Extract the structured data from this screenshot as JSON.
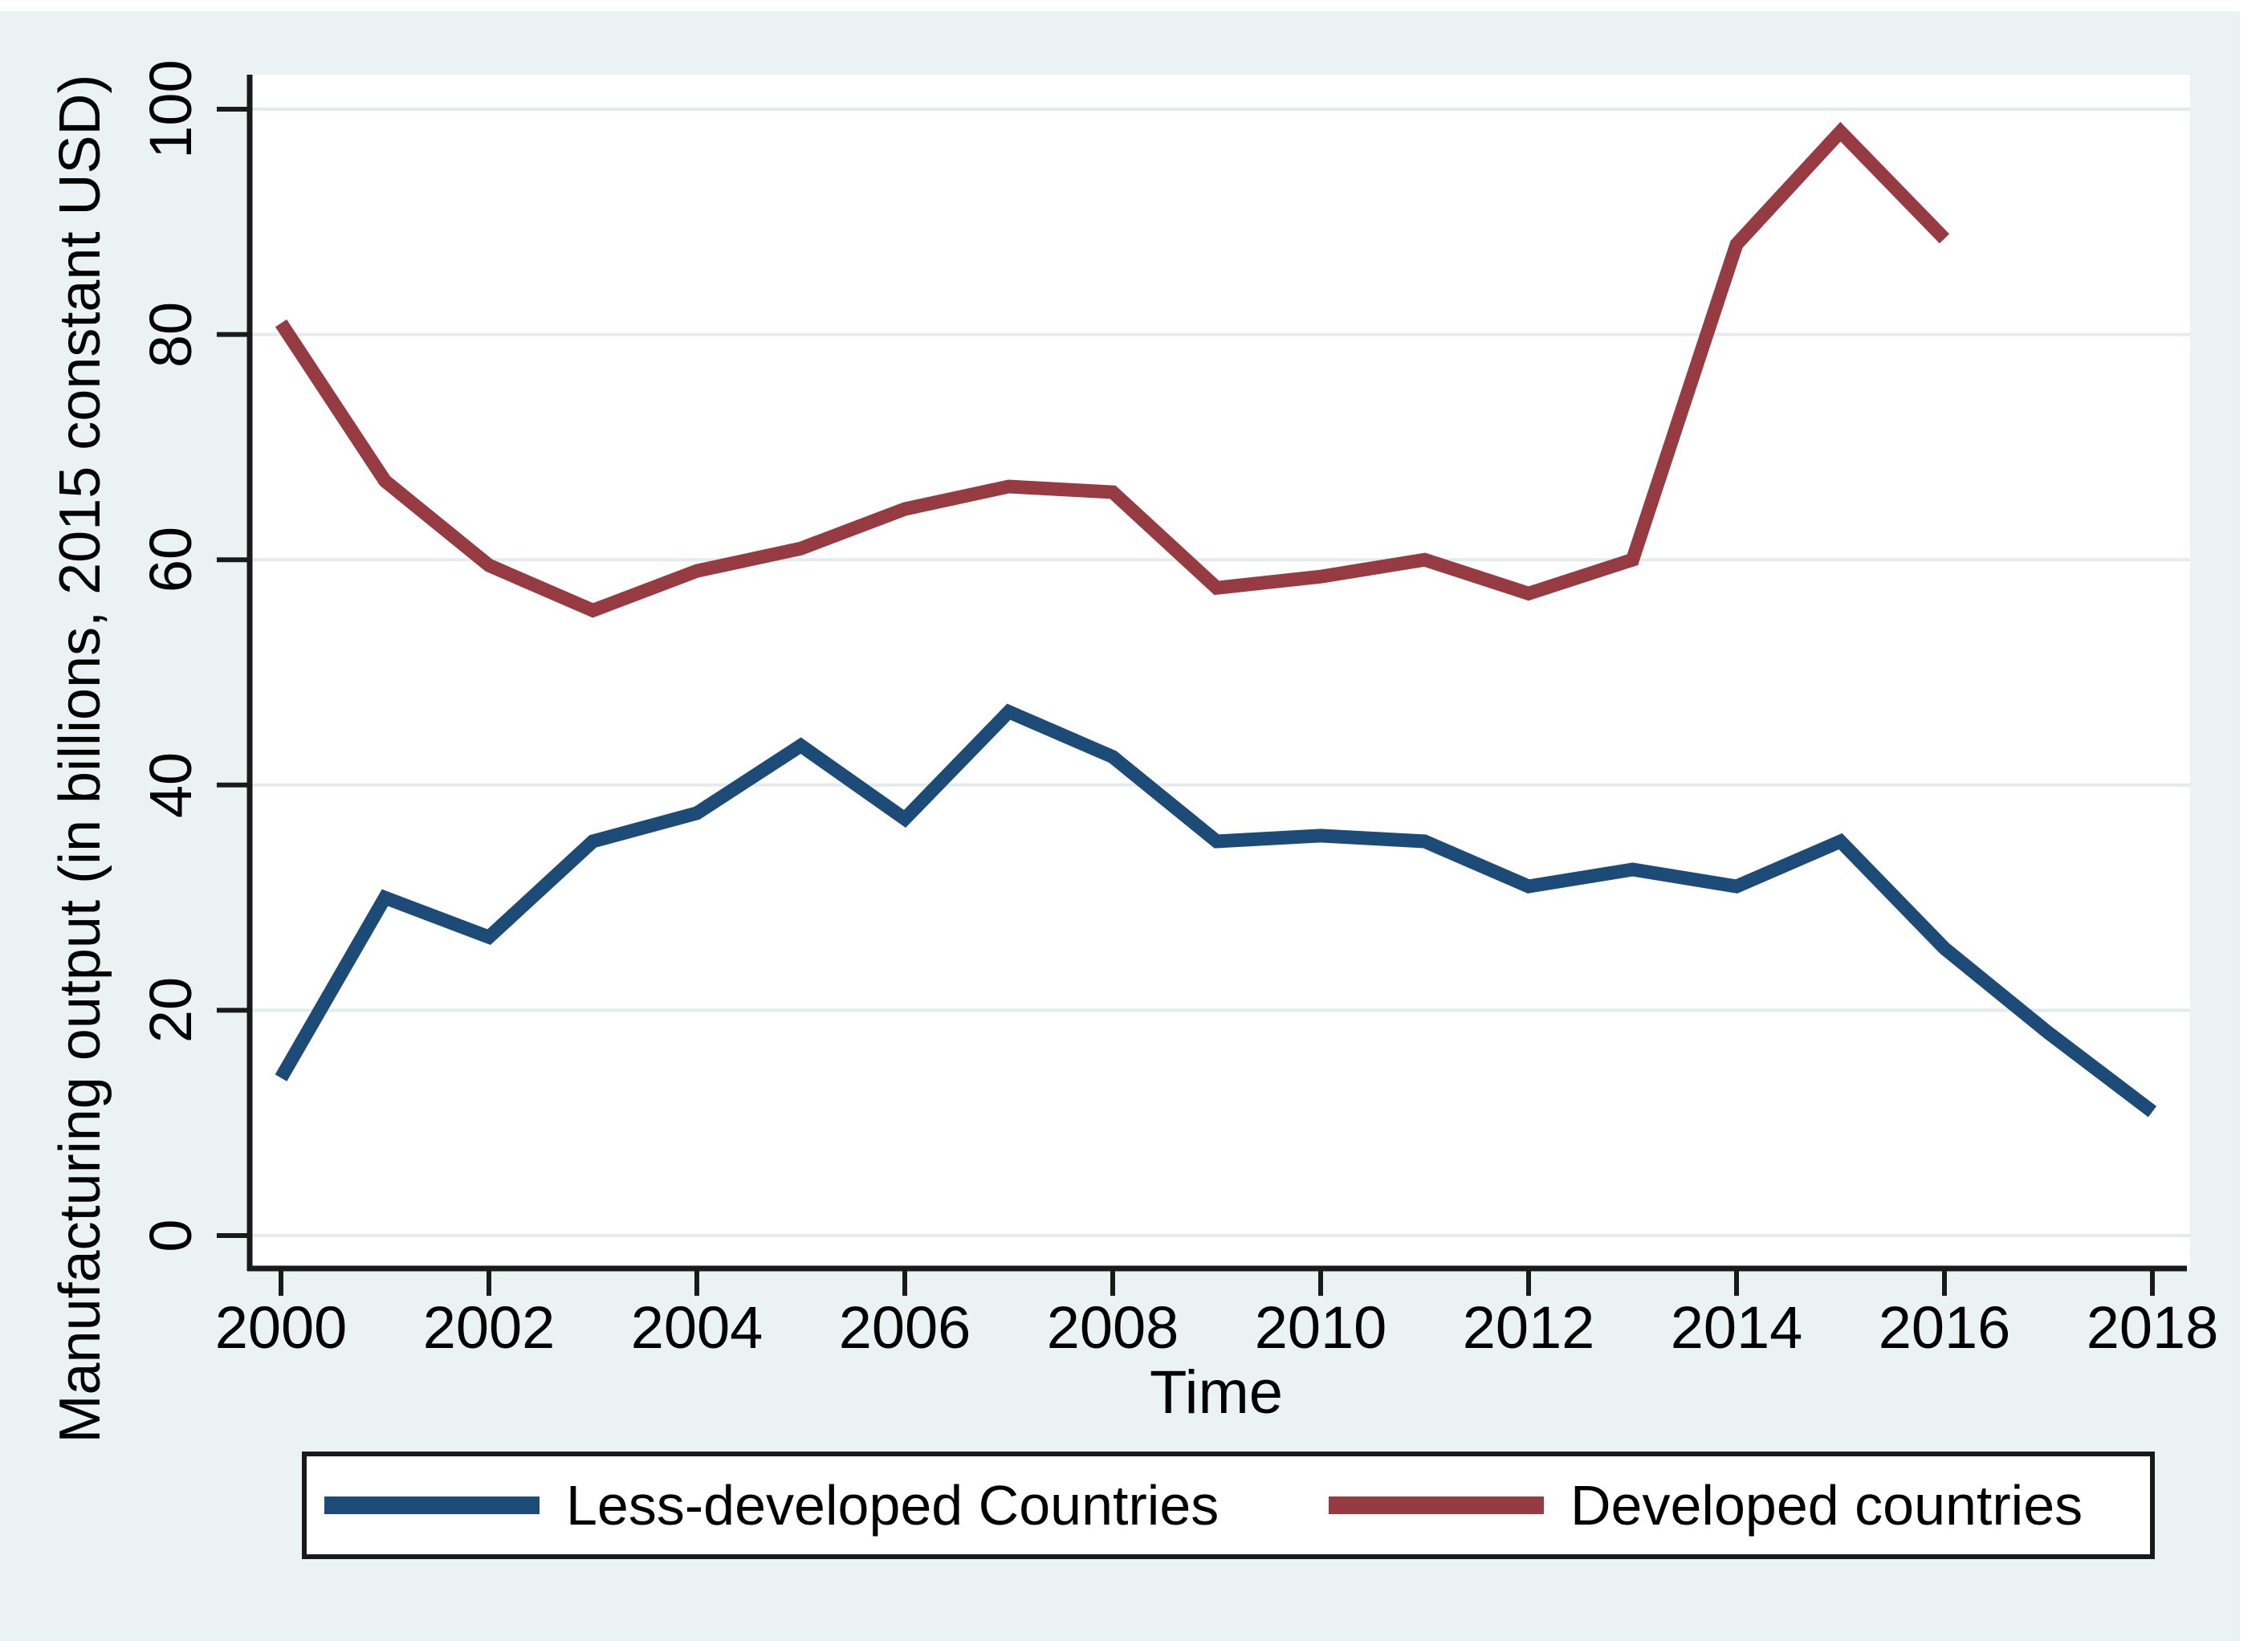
{
  "chart_data": {
    "type": "line",
    "title": "",
    "xlabel": "Time",
    "ylabel": "Manufacturing output (in billions, 2015 constant USD)",
    "x_ticks": [
      2000,
      2002,
      2004,
      2006,
      2008,
      2010,
      2012,
      2014,
      2016,
      2018
    ],
    "y_ticks": [
      0,
      20,
      40,
      60,
      80,
      100
    ],
    "xlim": [
      1999.7,
      2018.4
    ],
    "ylim": [
      -3,
      103
    ],
    "grid": true,
    "legend_position": "bottom",
    "series": [
      {
        "name": "Less-developed Countries",
        "color": "#1d4b77",
        "x": [
          2000,
          2001,
          2002,
          2003,
          2004,
          2005,
          2006,
          2007,
          2008,
          2009,
          2010,
          2011,
          2012,
          2013,
          2014,
          2015,
          2016,
          2017,
          2018
        ],
        "values": [
          14,
          30,
          26.5,
          35,
          37.5,
          43.5,
          37,
          46.5,
          42.5,
          35,
          35.5,
          35,
          31,
          32.5,
          31,
          35,
          25.5,
          18,
          11
        ]
      },
      {
        "name": "Developed countries",
        "color": "#973b43",
        "x": [
          2000,
          2001,
          2002,
          2003,
          2004,
          2005,
          2006,
          2007,
          2008,
          2009,
          2010,
          2011,
          2012,
          2013,
          2014,
          2015,
          2016
        ],
        "values": [
          81,
          67,
          59.5,
          55.5,
          59,
          61,
          64.5,
          66.5,
          66,
          57.5,
          58.5,
          60,
          57,
          60,
          88,
          98,
          88.5
        ]
      }
    ],
    "colors": {
      "background": "#eaf2f3",
      "plot_background": "#ffffff",
      "grid": "#e3ebed",
      "axis": "#1a1a1a",
      "text": "#000000"
    }
  }
}
